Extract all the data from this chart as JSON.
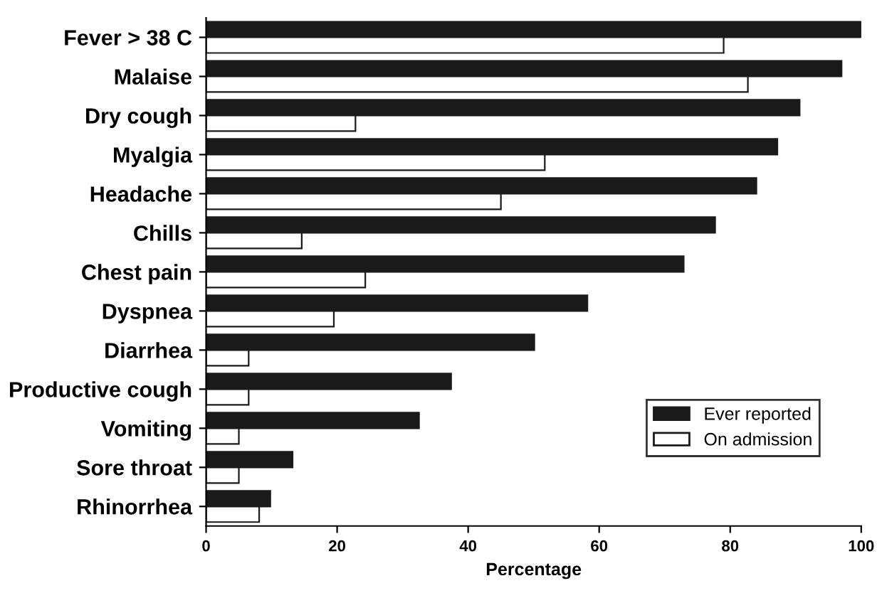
{
  "chart_data": {
    "type": "bar",
    "orientation": "horizontal",
    "xlabel": "Percentage",
    "categories": [
      "Fever > 38 C",
      "Malaise",
      "Dry cough",
      "Myalgia",
      "Headache",
      "Chills",
      "Chest pain",
      "Dyspnea",
      "Diarrhea",
      "Productive cough",
      "Vomiting",
      "Sore throat",
      "Rhinorrhea"
    ],
    "series": [
      {
        "name": "Ever reported",
        "color": "#1a1a1a",
        "values": [
          100,
          97,
          90.6,
          87.2,
          84,
          77.7,
          72.9,
          58.2,
          50.1,
          37.4,
          32.5,
          13.2,
          9.8
        ]
      },
      {
        "name": "On admission",
        "color": "#ffffff",
        "values": [
          79,
          82.7,
          22.8,
          51.7,
          45,
          14.6,
          24.3,
          19.5,
          6.5,
          6.5,
          5,
          5,
          8.1
        ]
      }
    ],
    "xlim": [
      0,
      100
    ],
    "xticks": [
      0,
      20,
      40,
      60,
      80,
      100
    ],
    "grid": false,
    "legend": "bottom right"
  }
}
